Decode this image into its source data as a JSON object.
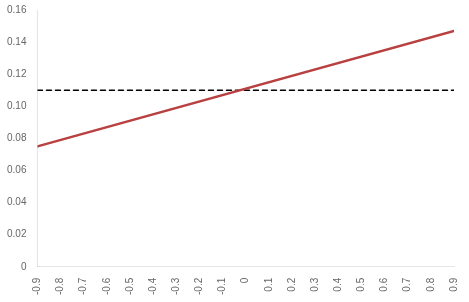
{
  "chart_data": {
    "type": "line",
    "x": [
      -0.9,
      0.9
    ],
    "series": [
      {
        "values": [
          0.075,
          0.147
        ],
        "color": "#b94040",
        "line_style": "solid"
      },
      {
        "values": [
          0.11,
          0.11
        ],
        "color": "#000000",
        "line_style": "dashed"
      }
    ],
    "xlim": [
      -0.9,
      0.9
    ],
    "xticks": [
      -0.9,
      -0.8,
      -0.7,
      -0.6,
      -0.5,
      -0.4,
      -0.3,
      -0.2,
      -0.1,
      0,
      0.1,
      0.2,
      0.3,
      0.4,
      0.5,
      0.6,
      0.7,
      0.8,
      0.9
    ],
    "ylim": [
      0,
      0.16
    ],
    "yticks": [
      0,
      0.02,
      0.04,
      0.06,
      0.08,
      {
        "value": 0.1,
        "label": "0.10"
      },
      0.12,
      0.14,
      0.16
    ],
    "grid": false
  }
}
